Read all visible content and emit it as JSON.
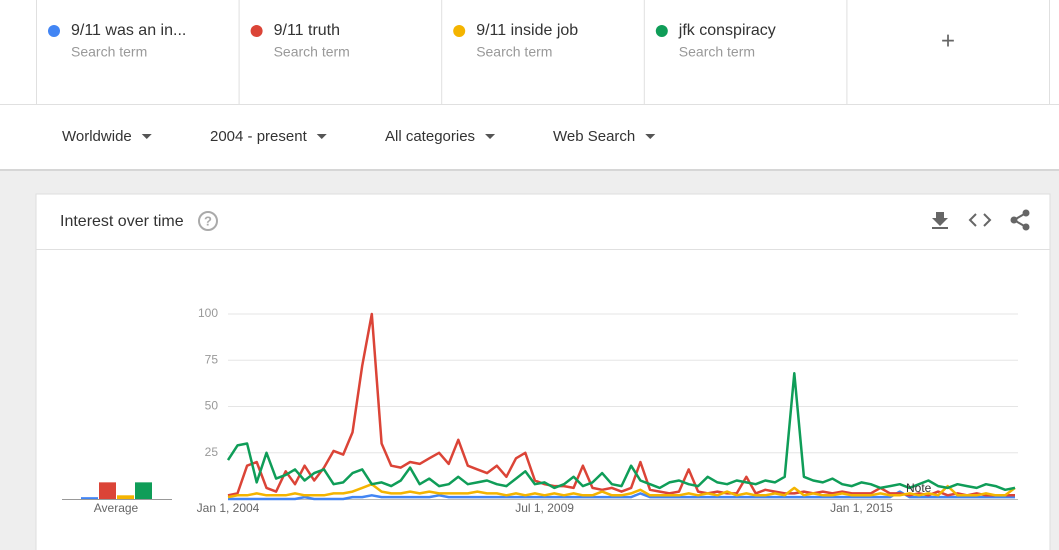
{
  "search_terms": [
    {
      "name": "9/11 was an in...",
      "subtitle": "Search term"
    },
    {
      "name": "9/11 truth",
      "subtitle": "Search term"
    },
    {
      "name": "9/11 inside job",
      "subtitle": "Search term"
    },
    {
      "name": "jfk conspiracy",
      "subtitle": "Search term"
    }
  ],
  "add_button": "+",
  "filters": [
    "Worldwide",
    "2004 - present",
    "All categories",
    "Web Search"
  ],
  "card_title": "Interest over time",
  "help_icon": "?",
  "chart_data": {
    "type": "line",
    "x": [
      "2004-01-01",
      "2004-03-01",
      "2004-05-01",
      "2004-07-01",
      "2004-09-01",
      "2004-11-01",
      "2005-01-01",
      "2005-03-01",
      "2005-05-01",
      "2005-07-01",
      "2005-09-01",
      "2005-11-01",
      "2006-01-01",
      "2006-03-01",
      "2006-05-01",
      "2006-07-01",
      "2006-09-01",
      "2006-11-01",
      "2007-01-01",
      "2007-03-01",
      "2007-05-01",
      "2007-07-01",
      "2007-09-01",
      "2007-11-01",
      "2008-01-01",
      "2008-03-01",
      "2008-05-01",
      "2008-07-01",
      "2008-09-01",
      "2008-11-01",
      "2009-01-01",
      "2009-03-01",
      "2009-05-01",
      "2009-07-01",
      "2009-09-01",
      "2009-11-01",
      "2010-01-01",
      "2010-03-01",
      "2010-05-01",
      "2010-07-01",
      "2010-09-01",
      "2010-11-01",
      "2011-01-01",
      "2011-03-01",
      "2011-05-01",
      "2011-07-01",
      "2011-09-01",
      "2011-11-01",
      "2012-01-01",
      "2012-03-01",
      "2012-05-01",
      "2012-07-01",
      "2012-09-01",
      "2012-11-01",
      "2013-01-01",
      "2013-03-01",
      "2013-05-01",
      "2013-07-01",
      "2013-09-01",
      "2013-11-01",
      "2014-01-01",
      "2014-03-01",
      "2014-05-01",
      "2014-07-01",
      "2014-09-01",
      "2014-11-01",
      "2015-01-01",
      "2015-03-01",
      "2015-05-01",
      "2015-07-01",
      "2015-09-01",
      "2015-11-01",
      "2016-01-01",
      "2016-03-01",
      "2016-05-01",
      "2016-07-01",
      "2016-09-01",
      "2016-11-01",
      "2017-01-01",
      "2017-03-01",
      "2017-05-01",
      "2017-07-01",
      "2017-09-01"
    ],
    "series": [
      {
        "name": "9/11 was an in...",
        "color": "#4285f4",
        "average": 1,
        "values": [
          0,
          0,
          0,
          0,
          0,
          0,
          0,
          0,
          1,
          0,
          0,
          0,
          0,
          1,
          1,
          2,
          1,
          1,
          1,
          1,
          1,
          1,
          2,
          1,
          1,
          1,
          1,
          1,
          1,
          1,
          1,
          1,
          1,
          1,
          1,
          1,
          1,
          1,
          1,
          1,
          1,
          1,
          1,
          3,
          1,
          1,
          1,
          1,
          1,
          1,
          1,
          1,
          1,
          1,
          1,
          1,
          1,
          1,
          1,
          1,
          1,
          1,
          1,
          1,
          1,
          1,
          1,
          1,
          1,
          1,
          4,
          1,
          1,
          1,
          1,
          1,
          1,
          1,
          1,
          1,
          1,
          1,
          1
        ]
      },
      {
        "name": "9/11 truth",
        "color": "#db4437",
        "average": 9,
        "values": [
          2,
          3,
          18,
          20,
          6,
          4,
          15,
          8,
          18,
          10,
          17,
          26,
          24,
          36,
          72,
          100,
          30,
          18,
          17,
          20,
          19,
          22,
          25,
          19,
          32,
          18,
          16,
          14,
          18,
          12,
          22,
          25,
          10,
          8,
          7,
          7,
          6,
          18,
          6,
          5,
          6,
          4,
          6,
          20,
          5,
          4,
          3,
          4,
          16,
          4,
          3,
          4,
          3,
          3,
          12,
          3,
          5,
          4,
          3,
          3,
          4,
          3,
          4,
          3,
          4,
          3,
          3,
          3,
          6,
          3,
          3,
          2,
          3,
          2,
          4,
          2,
          3,
          2,
          3,
          2,
          2,
          2,
          2
        ]
      },
      {
        "name": "9/11 inside job",
        "color": "#f4b400",
        "average": 2,
        "values": [
          1,
          2,
          2,
          3,
          2,
          2,
          2,
          3,
          2,
          2,
          2,
          3,
          3,
          4,
          6,
          8,
          4,
          3,
          3,
          4,
          3,
          4,
          3,
          3,
          3,
          3,
          4,
          3,
          3,
          2,
          3,
          2,
          3,
          2,
          3,
          2,
          3,
          2,
          2,
          4,
          2,
          2,
          3,
          5,
          2,
          2,
          2,
          2,
          3,
          2,
          3,
          2,
          4,
          2,
          3,
          2,
          2,
          3,
          2,
          6,
          2,
          3,
          2,
          2,
          3,
          2,
          2,
          2,
          3,
          2,
          2,
          3,
          2,
          3,
          2,
          7,
          2,
          2,
          2,
          3,
          2,
          2,
          6
        ]
      },
      {
        "name": "jfk conspiracy",
        "color": "#0f9d58",
        "average": 9,
        "values": [
          21,
          29,
          30,
          9,
          25,
          11,
          13,
          16,
          10,
          14,
          16,
          8,
          9,
          14,
          16,
          8,
          9,
          7,
          10,
          17,
          8,
          11,
          7,
          8,
          12,
          8,
          9,
          10,
          8,
          7,
          11,
          15,
          8,
          9,
          6,
          8,
          12,
          7,
          9,
          14,
          8,
          7,
          18,
          10,
          8,
          6,
          9,
          10,
          8,
          7,
          12,
          9,
          8,
          10,
          9,
          8,
          10,
          9,
          12,
          68,
          12,
          10,
          9,
          11,
          8,
          7,
          9,
          8,
          6,
          7,
          8,
          6,
          8,
          10,
          7,
          6,
          8,
          7,
          6,
          8,
          7,
          5,
          6
        ]
      }
    ],
    "average_label": "Average",
    "annotation": "Note",
    "xlim": [
      "2004-01-01",
      "2017-09-01"
    ],
    "xticks": [
      {
        "value": "2004-01-01",
        "label": "Jan 1, 2004"
      },
      {
        "value": "2009-07-01",
        "label": "Jul 1, 2009"
      },
      {
        "value": "2015-01-01",
        "label": "Jan 1, 2015"
      }
    ],
    "ylim": [
      0,
      100
    ],
    "yticks": [
      25,
      50,
      75,
      100
    ],
    "grid": true
  }
}
